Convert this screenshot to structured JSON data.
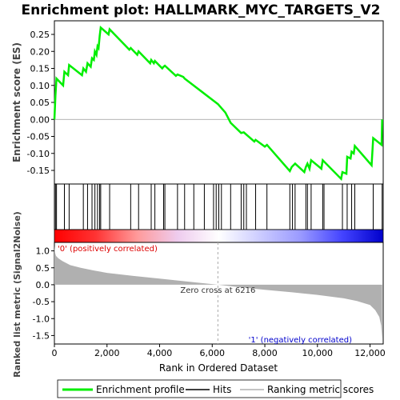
{
  "chart_data": {
    "type": "line",
    "title": "Enrichment plot: HALLMARK_MYC_TARGETS_V2",
    "xlabel": "Rank in Ordered Dataset",
    "ylabel_top": "Enrichment score (ES)",
    "ylabel_bottom": "Ranked list metric (Signal2Noise)",
    "xlim": [
      0,
      12500
    ],
    "x_ticks": [
      0,
      2000,
      4000,
      6000,
      8000,
      10000,
      12000
    ],
    "x_tick_labels": [
      "0",
      "2,000",
      "4,000",
      "6,000",
      "8,000",
      "10,000",
      "12,000"
    ],
    "es_ylim": [
      -0.19,
      0.29
    ],
    "es_ticks": [
      0.25,
      0.2,
      0.15,
      0.1,
      0.05,
      0.0,
      -0.05,
      -0.1,
      -0.15
    ],
    "es_tick_labels": [
      "0.25",
      "0.20",
      "0.15",
      "0.10",
      "0.05",
      "0.00",
      "-0.05",
      "-0.10",
      "-0.15"
    ],
    "metric_ylim": [
      -1.75,
      1.25
    ],
    "metric_ticks": [
      1.0,
      0.5,
      0.0,
      -0.5,
      -1.0,
      -1.5
    ],
    "metric_tick_labels": [
      "1.0",
      "0.5",
      "0.0",
      "-0.5",
      "-1.0",
      "-1.5"
    ],
    "zero_cross_rank": 6216,
    "zero_cross_label": "Zero cross at 6216",
    "pos_label": "'0' (positively correlated)",
    "neg_label": "'1' (negatively correlated)",
    "es_curve": [
      [
        0,
        0.0
      ],
      [
        40,
        0.07
      ],
      [
        80,
        0.12
      ],
      [
        330,
        0.1
      ],
      [
        380,
        0.14
      ],
      [
        520,
        0.13
      ],
      [
        560,
        0.16
      ],
      [
        1050,
        0.13
      ],
      [
        1100,
        0.15
      ],
      [
        1200,
        0.14
      ],
      [
        1260,
        0.165
      ],
      [
        1380,
        0.155
      ],
      [
        1430,
        0.18
      ],
      [
        1500,
        0.175
      ],
      [
        1540,
        0.2
      ],
      [
        1600,
        0.19
      ],
      [
        1640,
        0.215
      ],
      [
        1680,
        0.21
      ],
      [
        1720,
        0.245
      ],
      [
        1760,
        0.27
      ],
      [
        2060,
        0.25
      ],
      [
        2100,
        0.265
      ],
      [
        2850,
        0.205
      ],
      [
        2900,
        0.21
      ],
      [
        3150,
        0.19
      ],
      [
        3200,
        0.2
      ],
      [
        3640,
        0.165
      ],
      [
        3680,
        0.175
      ],
      [
        3780,
        0.165
      ],
      [
        3820,
        0.172
      ],
      [
        4100,
        0.15
      ],
      [
        4150,
        0.155
      ],
      [
        4200,
        0.158
      ],
      [
        4620,
        0.128
      ],
      [
        4680,
        0.132
      ],
      [
        4900,
        0.125
      ],
      [
        4950,
        0.12
      ],
      [
        6216,
        0.045
      ],
      [
        6500,
        0.02
      ],
      [
        6700,
        -0.01
      ],
      [
        7100,
        -0.04
      ],
      [
        7200,
        -0.038
      ],
      [
        7600,
        -0.065
      ],
      [
        7650,
        -0.06
      ],
      [
        8000,
        -0.08
      ],
      [
        8080,
        -0.075
      ],
      [
        8950,
        -0.152
      ],
      [
        9020,
        -0.14
      ],
      [
        9150,
        -0.13
      ],
      [
        9500,
        -0.155
      ],
      [
        9560,
        -0.14
      ],
      [
        9620,
        -0.13
      ],
      [
        9700,
        -0.145
      ],
      [
        9760,
        -0.12
      ],
      [
        10150,
        -0.145
      ],
      [
        10200,
        -0.12
      ],
      [
        10900,
        -0.175
      ],
      [
        10950,
        -0.155
      ],
      [
        11100,
        -0.16
      ],
      [
        11130,
        -0.11
      ],
      [
        11260,
        -0.115
      ],
      [
        11300,
        -0.095
      ],
      [
        11380,
        -0.1
      ],
      [
        11420,
        -0.078
      ],
      [
        12060,
        -0.135
      ],
      [
        12120,
        -0.055
      ],
      [
        12440,
        -0.075
      ],
      [
        12460,
        0.0
      ]
    ],
    "hit_ranks": [
      40,
      80,
      380,
      560,
      1100,
      1260,
      1430,
      1540,
      1640,
      1720,
      1760,
      2100,
      2900,
      3200,
      3680,
      3820,
      4150,
      4200,
      4680,
      4950,
      5300,
      5700,
      6050,
      6150,
      6250,
      6350,
      6700,
      7100,
      7200,
      7300,
      7650,
      8080,
      8950,
      9050,
      9150,
      9560,
      9620,
      9760,
      10200,
      10250,
      10950,
      11130,
      11300,
      11420,
      12120,
      12460
    ],
    "metric_curve": [
      [
        0,
        1.15
      ],
      [
        25,
        0.95
      ],
      [
        60,
        0.85
      ],
      [
        150,
        0.78
      ],
      [
        300,
        0.7
      ],
      [
        600,
        0.58
      ],
      [
        1000,
        0.5
      ],
      [
        1500,
        0.42
      ],
      [
        2000,
        0.35
      ],
      [
        3000,
        0.26
      ],
      [
        4000,
        0.18
      ],
      [
        5000,
        0.1
      ],
      [
        6216,
        0.0
      ],
      [
        7000,
        -0.07
      ],
      [
        8000,
        -0.15
      ],
      [
        9000,
        -0.22
      ],
      [
        10000,
        -0.3
      ],
      [
        11000,
        -0.4
      ],
      [
        11500,
        -0.48
      ],
      [
        12000,
        -0.6
      ],
      [
        12200,
        -0.75
      ],
      [
        12350,
        -0.95
      ],
      [
        12420,
        -1.2
      ],
      [
        12460,
        -1.6
      ]
    ],
    "legend": [
      "Enrichment profile",
      "Hits",
      "Ranking metric scores"
    ],
    "colors": {
      "es_line": "#00ee00",
      "hits": "#000000",
      "metric_fill": "#b0b0b0",
      "pos_text": "#dd0000",
      "neg_text": "#0000cc",
      "zero_line": "#aaaaaa"
    },
    "bar_gradient": [
      "#ff0000",
      "#ff3333",
      "#ff9999",
      "#eeccee",
      "#ffffff",
      "#ccccff",
      "#9999ff",
      "#4444ff",
      "#0000cc"
    ]
  }
}
